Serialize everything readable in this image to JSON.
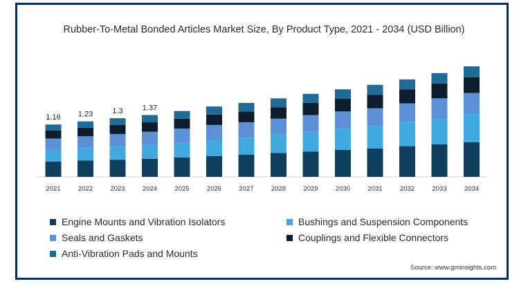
{
  "chart_data": {
    "type": "bar",
    "stacked": true,
    "title": "Rubber-To-Metal Bonded Articles Market Size, By Product Type, 2021 - 2034 (USD Billion)",
    "xlabel": "",
    "ylabel": "",
    "categories": [
      "2021",
      "2022",
      "2023",
      "2024",
      "2025",
      "2026",
      "2027",
      "2028",
      "2029",
      "2030",
      "2031",
      "2032",
      "2033",
      "2034"
    ],
    "totals": [
      1.16,
      1.23,
      1.3,
      1.37,
      1.46,
      1.56,
      1.64,
      1.74,
      1.84,
      1.94,
      2.04,
      2.16,
      2.3,
      2.45
    ],
    "total_labels": [
      "1.16",
      "1.23",
      "1.3",
      "1.37",
      "",
      "",
      "",
      "",
      "",
      "",
      "",
      "",
      "",
      ""
    ],
    "series": [
      {
        "name": "Engine Mounts and Vibration Isolators",
        "color": "#0e3f5e",
        "values": [
          0.34,
          0.36,
          0.38,
          0.4,
          0.43,
          0.46,
          0.49,
          0.53,
          0.56,
          0.6,
          0.63,
          0.68,
          0.72,
          0.77
        ]
      },
      {
        "name": "Bushings and Suspension Components",
        "color": "#3fa9e0",
        "values": [
          0.26,
          0.28,
          0.29,
          0.31,
          0.33,
          0.36,
          0.38,
          0.41,
          0.44,
          0.47,
          0.5,
          0.54,
          0.58,
          0.62
        ]
      },
      {
        "name": "Seals and Gaskets",
        "color": "#5b8fd6",
        "values": [
          0.25,
          0.26,
          0.28,
          0.29,
          0.31,
          0.33,
          0.34,
          0.35,
          0.37,
          0.38,
          0.39,
          0.41,
          0.44,
          0.47
        ]
      },
      {
        "name": "Couplings and Flexible Connectors",
        "color": "#0c1e2e",
        "values": [
          0.18,
          0.19,
          0.2,
          0.21,
          0.22,
          0.23,
          0.24,
          0.25,
          0.27,
          0.28,
          0.3,
          0.31,
          0.33,
          0.35
        ]
      },
      {
        "name": "Anti-Vibration Pads and Mounts",
        "color": "#1f6a96",
        "values": [
          0.13,
          0.14,
          0.15,
          0.16,
          0.17,
          0.18,
          0.19,
          0.2,
          0.2,
          0.21,
          0.22,
          0.22,
          0.23,
          0.24
        ]
      }
    ]
  },
  "source": "Source: www.gminsights.com"
}
